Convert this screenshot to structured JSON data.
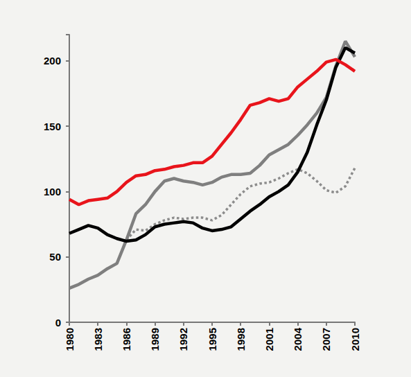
{
  "chart_data": {
    "type": "line",
    "x": [
      1980,
      1981,
      1982,
      1983,
      1984,
      1985,
      1986,
      1987,
      1988,
      1989,
      1990,
      1991,
      1992,
      1993,
      1994,
      1995,
      1996,
      1997,
      1998,
      1999,
      2000,
      2001,
      2002,
      2003,
      2004,
      2005,
      2006,
      2007,
      2008,
      2009,
      2010
    ],
    "xlim": [
      1980,
      2010
    ],
    "xticks": [
      1980,
      1983,
      1986,
      1989,
      1992,
      1995,
      1998,
      2001,
      2004,
      2007,
      2010
    ],
    "ylim": [
      0,
      220
    ],
    "yticks": [
      0,
      50,
      100,
      150,
      200
    ],
    "grid": false,
    "series": [
      {
        "color": "#8c8c8c",
        "line_style": "dotted",
        "values": [
          null,
          null,
          null,
          null,
          null,
          null,
          63,
          71,
          70,
          75,
          78,
          80,
          79,
          80,
          80,
          78,
          82,
          90,
          98,
          104,
          106,
          107,
          110,
          114,
          117,
          114,
          108,
          101,
          99,
          104,
          118
        ]
      },
      {
        "color": "#7f7f7f",
        "line_style": "solid",
        "values": [
          26,
          29,
          33,
          36,
          41,
          45,
          63,
          83,
          90,
          100,
          108,
          110,
          108,
          107,
          105,
          107,
          111,
          113,
          113,
          114,
          120,
          128,
          132,
          136,
          143,
          151,
          160,
          172,
          196,
          215,
          203
        ]
      },
      {
        "color": "#000000",
        "line_style": "solid",
        "values": [
          68,
          71,
          74,
          72,
          67,
          64,
          62,
          63,
          67,
          73,
          75,
          76,
          77,
          76,
          72,
          70,
          71,
          73,
          79,
          85,
          90,
          96,
          100,
          105,
          115,
          130,
          151,
          170,
          195,
          210,
          206
        ]
      },
      {
        "color": "#e8141b",
        "line_style": "solid",
        "values": [
          94,
          90,
          93,
          94,
          95,
          100,
          107,
          112,
          113,
          116,
          117,
          119,
          120,
          122,
          122,
          127,
          136,
          145,
          155,
          166,
          168,
          171,
          169,
          171,
          180,
          186,
          192,
          199,
          201,
          197,
          192
        ]
      }
    ]
  }
}
